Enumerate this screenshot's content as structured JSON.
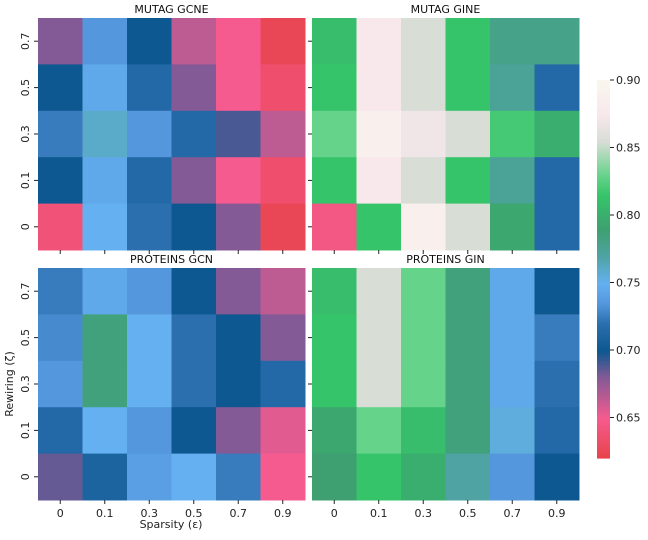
{
  "chart_data": {
    "type": "heatmap",
    "xlabel": "Sparsity (ε)",
    "ylabel": "Rewiring (ζ)",
    "x_categories": [
      "0",
      "0.1",
      "0.3",
      "0.5",
      "0.7",
      "0.9"
    ],
    "y_categories": [
      "0.7",
      "0.5",
      "0.3",
      "0.1",
      "0"
    ],
    "colorbar": {
      "min": 0.62,
      "max": 0.9,
      "ticks": [
        "0.65",
        "0.70",
        "0.75",
        "0.80",
        "0.85",
        "0.90"
      ]
    },
    "panels": [
      {
        "title": "MUTAG GCNE",
        "values": [
          [
            0.68,
            0.735,
            0.7,
            0.665,
            0.65,
            0.625
          ],
          [
            0.7,
            0.745,
            0.715,
            0.68,
            0.65,
            0.635
          ],
          [
            0.725,
            0.76,
            0.735,
            0.715,
            0.69,
            0.665
          ],
          [
            0.7,
            0.745,
            0.715,
            0.68,
            0.65,
            0.635
          ],
          [
            0.64,
            0.75,
            0.72,
            0.7,
            0.68,
            0.625
          ]
        ]
      },
      {
        "title": "MUTAG GINE",
        "values": [
          [
            0.81,
            0.875,
            0.855,
            0.815,
            0.78,
            0.78
          ],
          [
            0.815,
            0.875,
            0.855,
            0.815,
            0.775,
            0.715
          ],
          [
            0.83,
            0.89,
            0.87,
            0.855,
            0.82,
            0.8
          ],
          [
            0.815,
            0.875,
            0.855,
            0.815,
            0.775,
            0.715
          ],
          [
            0.645,
            0.815,
            0.89,
            0.855,
            0.795,
            0.715
          ]
        ]
      },
      {
        "title": "PROTEINS GCN",
        "values": [
          [
            0.725,
            0.745,
            0.735,
            0.7,
            0.68,
            0.665
          ],
          [
            0.73,
            0.785,
            0.75,
            0.72,
            0.7,
            0.68
          ],
          [
            0.735,
            0.785,
            0.75,
            0.72,
            0.7,
            0.715
          ],
          [
            0.715,
            0.75,
            0.735,
            0.7,
            0.68,
            0.655
          ],
          [
            0.685,
            0.71,
            0.74,
            0.75,
            0.725,
            0.65
          ]
        ]
      },
      {
        "title": "PROTEINS GIN",
        "values": [
          [
            0.81,
            0.855,
            0.83,
            0.785,
            0.745,
            0.7
          ],
          [
            0.815,
            0.855,
            0.83,
            0.785,
            0.745,
            0.725
          ],
          [
            0.815,
            0.855,
            0.83,
            0.785,
            0.745,
            0.72
          ],
          [
            0.795,
            0.83,
            0.81,
            0.785,
            0.755,
            0.715
          ],
          [
            0.79,
            0.815,
            0.8,
            0.77,
            0.735,
            0.7
          ]
        ]
      }
    ]
  }
}
